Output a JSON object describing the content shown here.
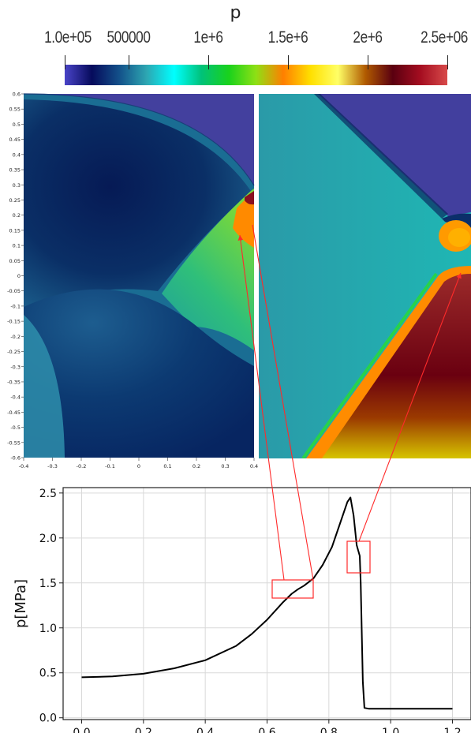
{
  "colorbar": {
    "title": "p",
    "ticks": [
      {
        "label": "1.0e+05",
        "value": 100000
      },
      {
        "label": "500000",
        "value": 500000
      },
      {
        "label": "1e+6",
        "value": 1000000
      },
      {
        "label": "1.5e+6",
        "value": 1500000
      },
      {
        "label": "2e+6",
        "value": 2000000
      },
      {
        "label": "2.5e+06",
        "value": 2500000
      }
    ],
    "range": [
      100000,
      2500000
    ],
    "colors": [
      "#4a44c8",
      "#060b5c",
      "#13518a",
      "#2da6b2",
      "#00ffff",
      "#00c27a",
      "#19d21c",
      "#8ee015",
      "#ff7f00",
      "#ffe000",
      "#ffff66",
      "#b05a00",
      "#5a0010",
      "#a40d20",
      "#d84a4a"
    ]
  },
  "field_left": {
    "y_ticks": [
      "0.6",
      "0.55",
      "0.5",
      "0.45",
      "0.4",
      "0.35",
      "0.3",
      "0.25",
      "0.2",
      "0.15",
      "0.1",
      "0.05",
      "0",
      "-0.05",
      "-0.1",
      "-0.15",
      "-0.2",
      "-0.25",
      "-0.3",
      "-0.35",
      "-0.4",
      "-0.45",
      "-0.5",
      "-0.55",
      "-0.6"
    ],
    "x_ticks": [
      "-0.4",
      "-0.3",
      "-0.2",
      "-0.1",
      "0",
      "0.1",
      "0.2",
      "0.3",
      "0.4"
    ]
  },
  "chart_data": {
    "type": "line",
    "title": "",
    "xlabel": "",
    "ylabel": "p[MPa]",
    "xlim": [
      -0.06,
      1.26
    ],
    "ylim": [
      -0.02,
      2.56
    ],
    "x_ticks": [
      "0.0",
      "0.2",
      "0.4",
      "0.6",
      "0.8",
      "1.0",
      "1.2"
    ],
    "y_ticks": [
      "0.0",
      "0.5",
      "1.0",
      "1.5",
      "2.0",
      "2.5"
    ],
    "grid": true,
    "series": [
      {
        "x": [
          0.0,
          0.1,
          0.2,
          0.3,
          0.4,
          0.5,
          0.55,
          0.6,
          0.65,
          0.68,
          0.7,
          0.72,
          0.75,
          0.78,
          0.81,
          0.84,
          0.86,
          0.87,
          0.88,
          0.89,
          0.9,
          0.903,
          0.91,
          0.915,
          0.93,
          1.0,
          1.1,
          1.2
        ],
        "y": [
          0.45,
          0.46,
          0.49,
          0.55,
          0.64,
          0.8,
          0.93,
          1.09,
          1.28,
          1.38,
          1.43,
          1.47,
          1.55,
          1.7,
          1.9,
          2.2,
          2.4,
          2.45,
          2.25,
          1.92,
          1.8,
          1.5,
          0.4,
          0.11,
          0.1,
          0.1,
          0.1,
          0.1
        ]
      }
    ]
  }
}
